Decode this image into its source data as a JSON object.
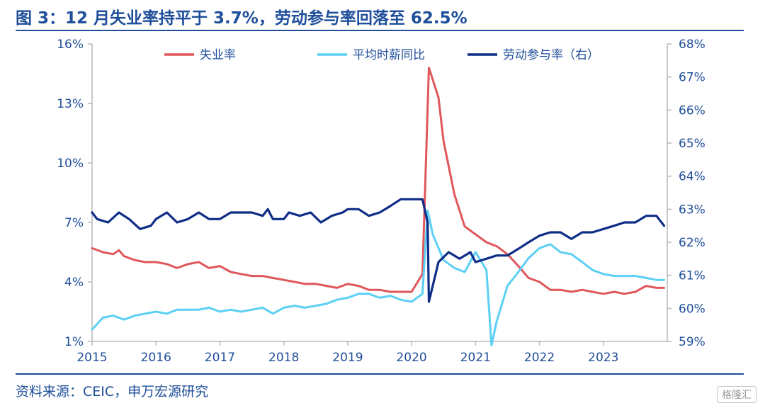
{
  "title": "图 3：12 月失业率持平于 3.7%，劳动参与率回落至 62.5%",
  "source": "资料来源：CEIC，申万宏源研究",
  "watermark": "格隆汇",
  "chart_data": {
    "type": "line",
    "x_start": 2015,
    "x_end": 2024,
    "x_ticks": [
      "2015",
      "2016",
      "2017",
      "2018",
      "2019",
      "2020",
      "2021",
      "2022",
      "2023"
    ],
    "y_left": {
      "range": [
        1,
        16
      ],
      "ticks": [
        "1%",
        "4%",
        "7%",
        "10%",
        "13%",
        "16%"
      ]
    },
    "y_right": {
      "range": [
        59,
        68
      ],
      "ticks": [
        "59%",
        "60%",
        "61%",
        "62%",
        "63%",
        "64%",
        "65%",
        "66%",
        "67%",
        "68%"
      ]
    },
    "legend_position": "top",
    "grid": false,
    "series": [
      {
        "name": "失业率",
        "axis": "left",
        "color": "#e0575b",
        "points": [
          [
            2015.0,
            5.7
          ],
          [
            2015.17,
            5.5
          ],
          [
            2015.33,
            5.4
          ],
          [
            2015.42,
            5.6
          ],
          [
            2015.5,
            5.3
          ],
          [
            2015.67,
            5.1
          ],
          [
            2015.83,
            5.0
          ],
          [
            2016.0,
            5.0
          ],
          [
            2016.17,
            4.9
          ],
          [
            2016.33,
            4.7
          ],
          [
            2016.5,
            4.9
          ],
          [
            2016.67,
            5.0
          ],
          [
            2016.83,
            4.7
          ],
          [
            2017.0,
            4.8
          ],
          [
            2017.17,
            4.5
          ],
          [
            2017.33,
            4.4
          ],
          [
            2017.5,
            4.3
          ],
          [
            2017.67,
            4.3
          ],
          [
            2017.83,
            4.2
          ],
          [
            2018.0,
            4.1
          ],
          [
            2018.17,
            4.0
          ],
          [
            2018.33,
            3.9
          ],
          [
            2018.5,
            3.9
          ],
          [
            2018.67,
            3.8
          ],
          [
            2018.83,
            3.7
          ],
          [
            2019.0,
            3.9
          ],
          [
            2019.17,
            3.8
          ],
          [
            2019.33,
            3.6
          ],
          [
            2019.5,
            3.6
          ],
          [
            2019.67,
            3.5
          ],
          [
            2019.83,
            3.5
          ],
          [
            2020.0,
            3.5
          ],
          [
            2020.17,
            4.4
          ],
          [
            2020.27,
            14.8
          ],
          [
            2020.42,
            13.3
          ],
          [
            2020.5,
            11.1
          ],
          [
            2020.67,
            8.4
          ],
          [
            2020.83,
            6.8
          ],
          [
            2021.0,
            6.4
          ],
          [
            2021.17,
            6.0
          ],
          [
            2021.33,
            5.8
          ],
          [
            2021.5,
            5.4
          ],
          [
            2021.67,
            4.8
          ],
          [
            2021.83,
            4.2
          ],
          [
            2022.0,
            4.0
          ],
          [
            2022.17,
            3.6
          ],
          [
            2022.33,
            3.6
          ],
          [
            2022.5,
            3.5
          ],
          [
            2022.67,
            3.6
          ],
          [
            2022.83,
            3.5
          ],
          [
            2023.0,
            3.4
          ],
          [
            2023.17,
            3.5
          ],
          [
            2023.33,
            3.4
          ],
          [
            2023.5,
            3.5
          ],
          [
            2023.67,
            3.8
          ],
          [
            2023.83,
            3.7
          ],
          [
            2023.95,
            3.7
          ]
        ]
      },
      {
        "name": "平均时薪同比",
        "axis": "left",
        "color": "#5cd0f5",
        "points": [
          [
            2015.0,
            1.6
          ],
          [
            2015.17,
            2.2
          ],
          [
            2015.33,
            2.3
          ],
          [
            2015.5,
            2.1
          ],
          [
            2015.67,
            2.3
          ],
          [
            2015.83,
            2.4
          ],
          [
            2016.0,
            2.5
          ],
          [
            2016.17,
            2.4
          ],
          [
            2016.33,
            2.6
          ],
          [
            2016.5,
            2.6
          ],
          [
            2016.67,
            2.6
          ],
          [
            2016.83,
            2.7
          ],
          [
            2017.0,
            2.5
          ],
          [
            2017.17,
            2.6
          ],
          [
            2017.33,
            2.5
          ],
          [
            2017.5,
            2.6
          ],
          [
            2017.67,
            2.7
          ],
          [
            2017.83,
            2.4
          ],
          [
            2018.0,
            2.7
          ],
          [
            2018.17,
            2.8
          ],
          [
            2018.33,
            2.7
          ],
          [
            2018.5,
            2.8
          ],
          [
            2018.67,
            2.9
          ],
          [
            2018.83,
            3.1
          ],
          [
            2019.0,
            3.2
          ],
          [
            2019.17,
            3.4
          ],
          [
            2019.33,
            3.4
          ],
          [
            2019.5,
            3.2
          ],
          [
            2019.67,
            3.3
          ],
          [
            2019.83,
            3.1
          ],
          [
            2020.0,
            3.0
          ],
          [
            2020.17,
            3.4
          ],
          [
            2020.25,
            7.6
          ],
          [
            2020.33,
            6.4
          ],
          [
            2020.5,
            5.1
          ],
          [
            2020.67,
            4.7
          ],
          [
            2020.83,
            4.5
          ],
          [
            2021.0,
            5.5
          ],
          [
            2021.17,
            4.6
          ],
          [
            2021.25,
            0.8
          ],
          [
            2021.33,
            2.0
          ],
          [
            2021.5,
            3.8
          ],
          [
            2021.67,
            4.5
          ],
          [
            2021.83,
            5.2
          ],
          [
            2022.0,
            5.7
          ],
          [
            2022.17,
            5.9
          ],
          [
            2022.33,
            5.5
          ],
          [
            2022.5,
            5.4
          ],
          [
            2022.67,
            5.0
          ],
          [
            2022.83,
            4.6
          ],
          [
            2023.0,
            4.4
          ],
          [
            2023.17,
            4.3
          ],
          [
            2023.33,
            4.3
          ],
          [
            2023.5,
            4.3
          ],
          [
            2023.67,
            4.2
          ],
          [
            2023.83,
            4.1
          ],
          [
            2023.95,
            4.1
          ]
        ]
      },
      {
        "name": "劳动参与率（右）",
        "axis": "right",
        "color": "#0e2d86",
        "points": [
          [
            2015.0,
            62.9
          ],
          [
            2015.08,
            62.7
          ],
          [
            2015.25,
            62.6
          ],
          [
            2015.42,
            62.9
          ],
          [
            2015.58,
            62.7
          ],
          [
            2015.75,
            62.4
          ],
          [
            2015.92,
            62.5
          ],
          [
            2016.0,
            62.7
          ],
          [
            2016.17,
            62.9
          ],
          [
            2016.33,
            62.6
          ],
          [
            2016.5,
            62.7
          ],
          [
            2016.67,
            62.9
          ],
          [
            2016.83,
            62.7
          ],
          [
            2017.0,
            62.7
          ],
          [
            2017.17,
            62.9
          ],
          [
            2017.33,
            62.9
          ],
          [
            2017.5,
            62.9
          ],
          [
            2017.67,
            62.8
          ],
          [
            2017.75,
            63.0
          ],
          [
            2017.83,
            62.7
          ],
          [
            2018.0,
            62.7
          ],
          [
            2018.08,
            62.9
          ],
          [
            2018.25,
            62.8
          ],
          [
            2018.42,
            62.9
          ],
          [
            2018.58,
            62.6
          ],
          [
            2018.75,
            62.8
          ],
          [
            2018.92,
            62.9
          ],
          [
            2019.0,
            63.0
          ],
          [
            2019.17,
            63.0
          ],
          [
            2019.33,
            62.8
          ],
          [
            2019.5,
            62.9
          ],
          [
            2019.67,
            63.1
          ],
          [
            2019.83,
            63.3
          ],
          [
            2020.0,
            63.3
          ],
          [
            2020.17,
            63.3
          ],
          [
            2020.25,
            62.6
          ],
          [
            2020.27,
            60.2
          ],
          [
            2020.42,
            61.4
          ],
          [
            2020.58,
            61.7
          ],
          [
            2020.75,
            61.5
          ],
          [
            2020.92,
            61.7
          ],
          [
            2021.0,
            61.4
          ],
          [
            2021.17,
            61.5
          ],
          [
            2021.33,
            61.6
          ],
          [
            2021.5,
            61.6
          ],
          [
            2021.67,
            61.8
          ],
          [
            2021.83,
            62.0
          ],
          [
            2022.0,
            62.2
          ],
          [
            2022.17,
            62.3
          ],
          [
            2022.33,
            62.3
          ],
          [
            2022.5,
            62.1
          ],
          [
            2022.67,
            62.3
          ],
          [
            2022.83,
            62.3
          ],
          [
            2023.0,
            62.4
          ],
          [
            2023.17,
            62.5
          ],
          [
            2023.33,
            62.6
          ],
          [
            2023.5,
            62.6
          ],
          [
            2023.67,
            62.8
          ],
          [
            2023.83,
            62.8
          ],
          [
            2023.95,
            62.5
          ]
        ]
      }
    ]
  }
}
